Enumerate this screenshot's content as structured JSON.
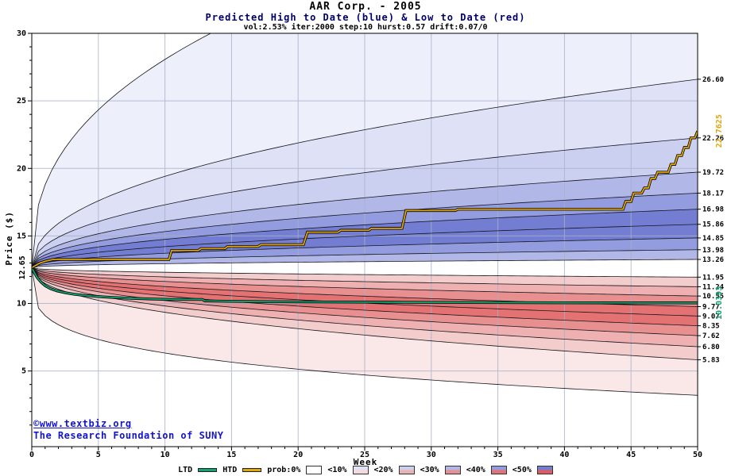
{
  "title": "AAR Corp. - 2005",
  "subtitle": "Predicted High to Date (blue) &  Low to Date (red)",
  "params_line": "vol:2.53% iter:2000 step:10 hurst:0.57 drift:0.07/0",
  "watermark": {
    "line1": "©www.textbiz.org",
    "line2": "The Research Foundation of SUNY"
  },
  "legend": {
    "ltd_label": "LTD",
    "htd_label": "HTD",
    "prob_items": [
      {
        "label": "prob:0%",
        "blue": "#ffffff",
        "red": "#ffffff"
      },
      {
        "label": "<10%",
        "blue": "#dfe2f6",
        "red": "#f6dada"
      },
      {
        "label": "<20%",
        "blue": "#cbd0f0",
        "red": "#eeb0b0"
      },
      {
        "label": "<30%",
        "blue": "#b1b8e8",
        "red": "#e89090"
      },
      {
        "label": "<40%",
        "blue": "#939cde",
        "red": "#e47272"
      },
      {
        "label": "<50%",
        "blue": "#737ed3",
        "red": "#e05c5c"
      }
    ]
  },
  "chart_data": {
    "type": "fan",
    "title": "AAR Corp. - 2005",
    "xlabel": "Week",
    "ylabel": "Price ($)",
    "x_range": [
      0,
      50
    ],
    "y_range": [
      -0.6,
      30
    ],
    "x_ticks": [
      0,
      5,
      10,
      15,
      20,
      25,
      30,
      35,
      40,
      45,
      50
    ],
    "y_ticks": [
      5,
      10,
      15,
      20,
      25,
      30
    ],
    "grid": true,
    "start_price": 12.65,
    "start_price_label": "12.65",
    "center_band_color": "#ffffff",
    "high_fan": {
      "description": "Predicted High-to-Date probability bands (blue), boundary values at week 50",
      "boundaries": [
        {
          "end": 42.0,
          "shape": 0.4,
          "label": ""
        },
        {
          "end": 26.6,
          "shape": 0.45,
          "label": "26.60"
        },
        {
          "end": 22.26,
          "shape": 0.45,
          "label": "22.26"
        },
        {
          "end": 19.72,
          "shape": 0.45,
          "label": "19.72"
        },
        {
          "end": 18.17,
          "shape": 0.45,
          "label": "18.17"
        },
        {
          "end": 16.98,
          "shape": 0.45,
          "label": "16.98"
        },
        {
          "end": 15.86,
          "shape": 0.45,
          "label": "15.86"
        },
        {
          "end": 14.85,
          "shape": 0.45,
          "label": "14.85"
        },
        {
          "end": 13.98,
          "shape": 0.45,
          "label": "13.98"
        },
        {
          "end": 13.26,
          "shape": 0.45,
          "label": "13.26"
        }
      ],
      "band_colors": [
        "#edeffa",
        "#dfe2f6",
        "#cbd0f0",
        "#b1b8e8",
        "#939cde",
        "#737ed3",
        "#737ed3",
        "#939cde",
        "#b1b8e8"
      ]
    },
    "low_fan": {
      "description": "Predicted Low-to-Date probability bands (red), boundary values at week 50",
      "boundaries": [
        {
          "end": 11.95,
          "shape": 0.45,
          "label": "11.95"
        },
        {
          "end": 11.24,
          "shape": 0.45,
          "label": "11.24"
        },
        {
          "end": 10.55,
          "shape": 0.45,
          "label": "10.55"
        },
        {
          "end": 9.77,
          "shape": 0.45,
          "label": "9.77"
        },
        {
          "end": 9.07,
          "shape": 0.45,
          "label": "9.07"
        },
        {
          "end": 8.35,
          "shape": 0.45,
          "label": "8.35"
        },
        {
          "end": 7.62,
          "shape": 0.45,
          "label": "7.62"
        },
        {
          "end": 6.8,
          "shape": 0.45,
          "label": "6.80"
        },
        {
          "end": 5.83,
          "shape": 0.45,
          "label": "5.83"
        },
        {
          "end": 3.2,
          "shape": 0.25,
          "label": ""
        }
      ],
      "band_colors": [
        "#f3cccc",
        "#eeb0b0",
        "#e89090",
        "#e47272",
        "#e47272",
        "#e89090",
        "#eeb0b0",
        "#f3cccc",
        "#fae7e7"
      ]
    },
    "htd": {
      "name": "HTD",
      "color": "#e2a50a",
      "final_label": "22.7625",
      "points": [
        [
          0,
          12.65
        ],
        [
          0.3,
          12.82
        ],
        [
          0.6,
          12.99
        ],
        [
          1,
          13.12
        ],
        [
          1.6,
          13.26
        ],
        [
          10.3,
          13.26
        ],
        [
          10.5,
          13.92
        ],
        [
          12.5,
          13.92
        ],
        [
          12.7,
          14.06
        ],
        [
          14.5,
          14.06
        ],
        [
          14.7,
          14.22
        ],
        [
          17,
          14.22
        ],
        [
          17.2,
          14.35
        ],
        [
          20.4,
          14.35
        ],
        [
          20.7,
          15.28
        ],
        [
          23,
          15.28
        ],
        [
          23.2,
          15.42
        ],
        [
          25.3,
          15.42
        ],
        [
          25.5,
          15.56
        ],
        [
          27.8,
          15.56
        ],
        [
          28.1,
          16.88
        ],
        [
          31.8,
          16.88
        ],
        [
          32,
          16.98
        ],
        [
          44.4,
          16.98
        ],
        [
          44.6,
          17.55
        ],
        [
          45,
          17.55
        ],
        [
          45.2,
          18.17
        ],
        [
          45.8,
          18.17
        ],
        [
          46,
          18.55
        ],
        [
          46.3,
          18.55
        ],
        [
          46.5,
          19.25
        ],
        [
          46.8,
          19.25
        ],
        [
          47,
          19.72
        ],
        [
          47.8,
          19.72
        ],
        [
          48,
          20.3
        ],
        [
          48.3,
          20.3
        ],
        [
          48.5,
          20.95
        ],
        [
          48.8,
          20.95
        ],
        [
          49,
          21.55
        ],
        [
          49.3,
          21.55
        ],
        [
          49.5,
          22.26
        ],
        [
          49.8,
          22.26
        ],
        [
          50,
          22.7625
        ]
      ]
    },
    "ltd": {
      "name": "LTD",
      "color": "#13a370",
      "final_label": "10.0393",
      "points": [
        [
          0,
          12.65
        ],
        [
          0.2,
          12.28
        ],
        [
          0.4,
          11.92
        ],
        [
          0.7,
          11.58
        ],
        [
          1,
          11.32
        ],
        [
          1.4,
          11.1
        ],
        [
          1.9,
          10.93
        ],
        [
          2.5,
          10.8
        ],
        [
          3.2,
          10.68
        ],
        [
          4,
          10.59
        ],
        [
          5,
          10.51
        ],
        [
          6.2,
          10.44
        ],
        [
          7.5,
          10.38
        ],
        [
          9,
          10.33
        ],
        [
          10.5,
          10.3
        ],
        [
          12.8,
          10.3
        ],
        [
          13,
          10.19
        ],
        [
          15,
          10.16
        ],
        [
          18,
          10.13
        ],
        [
          22,
          10.11
        ],
        [
          27,
          10.09
        ],
        [
          33,
          10.07
        ],
        [
          40,
          10.05
        ],
        [
          46,
          10.04
        ],
        [
          50,
          10.0393
        ]
      ]
    }
  }
}
